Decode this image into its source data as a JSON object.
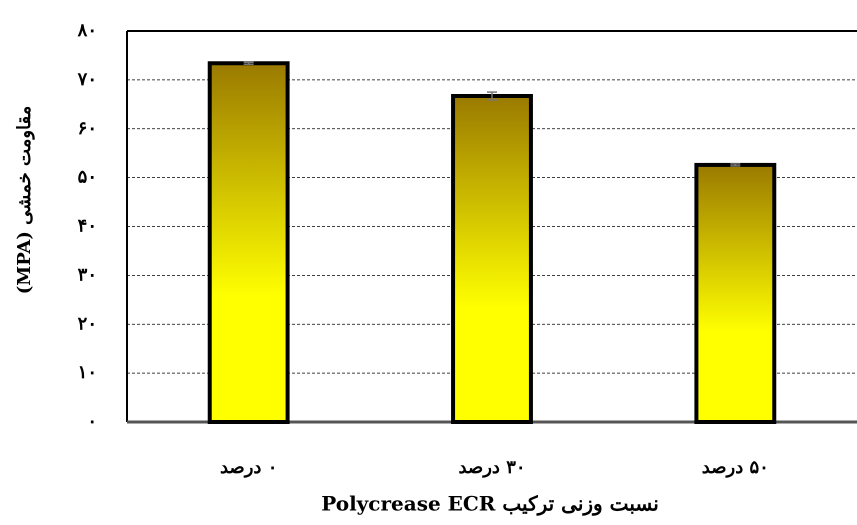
{
  "chart_data": {
    "type": "bar",
    "y_label": "مقاومت خمشی (MPA)",
    "x_label": "نسبت وزنی ترکیب Polycrease ECR",
    "categories": [
      "۰ درصد",
      "۳۰ درصد",
      "۵۰ درصد"
    ],
    "values": [
      73.4,
      66.7,
      52.6
    ],
    "errors": [
      0.2,
      0.8,
      0.2
    ],
    "color": "#ffff00",
    "gradient_top": "#9a7a00",
    "ylim": [
      0,
      80
    ],
    "yticks": [
      {
        "value": 0,
        "label": "۰"
      },
      {
        "value": 10,
        "label": "۱۰"
      },
      {
        "value": 20,
        "label": "۲۰"
      },
      {
        "value": 30,
        "label": "۳۰"
      },
      {
        "value": 40,
        "label": "۴۰"
      },
      {
        "value": 50,
        "label": "۵۰"
      },
      {
        "value": 60,
        "label": "۶۰"
      },
      {
        "value": 70,
        "label": "۷۰"
      },
      {
        "value": 80,
        "label": "۸۰"
      }
    ],
    "grid": true
  }
}
